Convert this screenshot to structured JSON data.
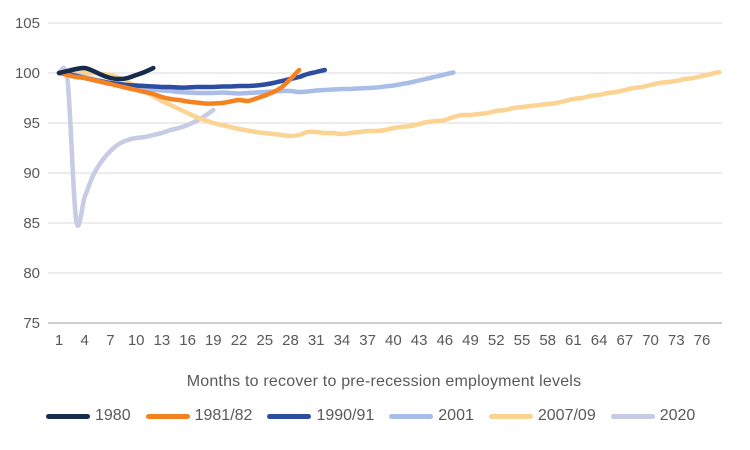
{
  "chart_data": {
    "type": "line",
    "title": "",
    "xlabel": "Months to recover to pre-recession employment levels",
    "ylabel": "",
    "x_ticks": [
      1,
      4,
      7,
      10,
      13,
      16,
      19,
      22,
      25,
      28,
      31,
      34,
      37,
      40,
      43,
      46,
      49,
      52,
      55,
      58,
      61,
      64,
      67,
      70,
      73,
      76
    ],
    "y_ticks": [
      75,
      80,
      85,
      90,
      95,
      100,
      105
    ],
    "ylim": [
      75,
      105
    ],
    "xlim": [
      1,
      79
    ],
    "grid": "horizontal-only",
    "legend_position": "bottom",
    "baseline_index_value": 100,
    "x_unit": "months since employment peak",
    "series": [
      {
        "name": "1980",
        "color": "#172B4D",
        "start_month": 1,
        "values": [
          100,
          100.2,
          100.4,
          100.5,
          100.2,
          99.8,
          99.5,
          99.4,
          99.5,
          99.8,
          100.1,
          100.5
        ]
      },
      {
        "name": "1981/82",
        "color": "#F58220",
        "start_month": 1,
        "values": [
          100,
          99.8,
          99.6,
          99.5,
          99.3,
          99.1,
          98.9,
          98.7,
          98.5,
          98.3,
          98.1,
          97.9,
          97.6,
          97.4,
          97.3,
          97.15,
          97.05,
          96.95,
          96.95,
          97.0,
          97.15,
          97.3,
          97.2,
          97.45,
          97.75,
          98.1,
          98.6,
          99.4,
          100.3
        ]
      },
      {
        "name": "1990/91",
        "color": "#2C4DA0",
        "start_month": 1,
        "values": [
          100,
          99.9,
          99.7,
          99.5,
          99.3,
          99.15,
          99.0,
          98.9,
          98.8,
          98.75,
          98.7,
          98.65,
          98.6,
          98.6,
          98.55,
          98.55,
          98.6,
          98.6,
          98.6,
          98.65,
          98.65,
          98.7,
          98.7,
          98.75,
          98.85,
          99.0,
          99.2,
          99.4,
          99.6,
          99.9,
          100.1,
          100.3
        ]
      },
      {
        "name": "2001",
        "color": "#A9BDE8",
        "start_month": 1,
        "values": [
          100,
          99.9,
          99.8,
          99.6,
          99.4,
          99.2,
          99.0,
          98.85,
          98.7,
          98.55,
          98.45,
          98.35,
          98.25,
          98.2,
          98.1,
          98.05,
          98.0,
          98.0,
          98.0,
          98.05,
          98.0,
          97.95,
          98.0,
          98.05,
          98.1,
          98.15,
          98.2,
          98.2,
          98.1,
          98.15,
          98.25,
          98.3,
          98.35,
          98.4,
          98.4,
          98.45,
          98.5,
          98.55,
          98.65,
          98.75,
          98.9,
          99.05,
          99.25,
          99.45,
          99.65,
          99.85,
          100.05
        ]
      },
      {
        "name": "2007/09",
        "color": "#FBD494",
        "start_month": 1,
        "values": [
          100,
          100.1,
          100.1,
          100.05,
          100.0,
          99.9,
          99.8,
          99.5,
          99.1,
          98.7,
          98.2,
          97.7,
          97.2,
          96.8,
          96.4,
          96.0,
          95.6,
          95.3,
          95.0,
          94.8,
          94.6,
          94.4,
          94.25,
          94.1,
          94.0,
          93.9,
          93.8,
          93.7,
          93.8,
          94.1,
          94.1,
          94.0,
          94.0,
          93.9,
          94.0,
          94.1,
          94.2,
          94.2,
          94.3,
          94.5,
          94.6,
          94.7,
          94.9,
          95.1,
          95.2,
          95.3,
          95.6,
          95.8,
          95.8,
          95.9,
          96.0,
          96.2,
          96.3,
          96.5,
          96.6,
          96.7,
          96.8,
          96.9,
          97.0,
          97.2,
          97.4,
          97.5,
          97.7,
          97.8,
          98.0,
          98.1,
          98.3,
          98.5,
          98.6,
          98.8,
          99.0,
          99.1,
          99.2,
          99.4,
          99.5,
          99.7,
          99.9,
          100.1
        ]
      },
      {
        "name": "2020",
        "color": "#C7CBE3",
        "start_month": 1,
        "values": [
          100,
          99.2,
          85.3,
          87.6,
          89.8,
          91.2,
          92.2,
          92.9,
          93.3,
          93.5,
          93.6,
          93.8,
          94.0,
          94.3,
          94.5,
          94.8,
          95.2,
          95.7,
          96.3
        ]
      }
    ]
  },
  "style_tokens": {
    "gridline_color": "#D9D9D9",
    "axis_line_color": "#BFBFBF",
    "tick_label_color": "#595959",
    "background_color": "#FFFFFF"
  }
}
